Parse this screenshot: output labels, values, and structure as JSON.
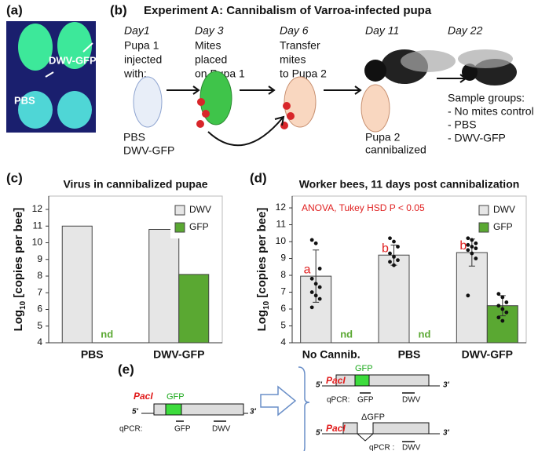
{
  "panel_a": {
    "label": "(a)",
    "labels": [
      "DWV-GFP",
      "PBS"
    ]
  },
  "panel_b": {
    "label": "(b)",
    "title": "Experiment A: Cannibalism of Varroa-infected pupa",
    "steps": [
      {
        "day": "Day1",
        "lines": [
          "Pupa 1",
          "injected",
          "with:"
        ]
      },
      {
        "day": "Day 3",
        "lines": [
          "Mites",
          "placed",
          "on Pupa 1"
        ]
      },
      {
        "day": "Day 6",
        "lines": [
          "Transfer",
          "mites",
          "to Pupa 2"
        ]
      },
      {
        "day": "Day 11",
        "lines": []
      },
      {
        "day": "Day 22",
        "lines": []
      }
    ],
    "injections": [
      "PBS",
      "DWV-GFP"
    ],
    "pupa2": [
      "Pupa 2",
      "cannibalized"
    ],
    "groups": [
      "Sample groups:",
      "- No mites control",
      "- PBS",
      "- DWV-GFP"
    ]
  },
  "chart_data": [
    {
      "type": "bar",
      "label": "(c)",
      "title": "Virus in cannibalized pupae",
      "ylabel": [
        "Log",
        "10",
        " [copies per bee]"
      ],
      "categories": [
        "PBS",
        "DWV-GFP"
      ],
      "series": [
        {
          "name": "DWV",
          "color": "#e6e6e6",
          "values": [
            11.0,
            10.8
          ]
        },
        {
          "name": "GFP",
          "color": "#5aa832",
          "values": [
            null,
            8.1
          ],
          "value_labels": [
            "nd",
            null
          ]
        }
      ],
      "ylim": [
        4,
        12.8
      ],
      "yticks": [
        4,
        5,
        6,
        7,
        8,
        9,
        10,
        11,
        12
      ],
      "legend": "top-right"
    },
    {
      "type": "bar",
      "label": "(d)",
      "title": "Worker bees, 11 days post cannibalization",
      "annotation": "ANOVA, Tukey HSD  P < 0.05",
      "ylabel": [
        "Log",
        "10",
        " [copies per bee]"
      ],
      "categories": [
        "No Cannib.",
        "PBS",
        "DWV-GFP"
      ],
      "series": [
        {
          "name": "DWV",
          "color": "#e6e6e6",
          "values": [
            7.95,
            9.2,
            9.35
          ],
          "errors": [
            1.55,
            0.6,
            0.8
          ],
          "letters": [
            "a",
            "b",
            "b"
          ],
          "points": [
            [
              10.1,
              9.9,
              8.4,
              7.8,
              7.5,
              7.3,
              7.0,
              6.8,
              6.6,
              6.1
            ],
            [
              10.2,
              10.0,
              9.7,
              9.3,
              9.1,
              8.9,
              8.8,
              8.6
            ],
            [
              10.2,
              10.1,
              9.9,
              9.8,
              9.7,
              9.6,
              9.5,
              9.3,
              9.0,
              6.8
            ]
          ]
        },
        {
          "name": "GFP",
          "color": "#5aa832",
          "values": [
            null,
            null,
            6.2
          ],
          "errors": [
            null,
            null,
            0.6
          ],
          "value_labels": [
            "nd",
            "nd",
            null
          ],
          "points": [
            [],
            [],
            [
              6.9,
              6.7,
              6.4,
              6.2,
              6.0,
              5.8,
              5.5,
              5.3
            ]
          ]
        }
      ],
      "ylim": [
        4,
        12.7
      ],
      "yticks": [
        4,
        5,
        6,
        7,
        8,
        9,
        10,
        11,
        12
      ],
      "legend": "top-right"
    }
  ],
  "panel_e": {
    "label": "(e)",
    "construct": {
      "enzyme": "PacI",
      "insert": "GFP",
      "five": "5'",
      "three": "3'",
      "qpcr": "qPCR:",
      "primers": [
        "GFP",
        "DWV"
      ]
    },
    "products": [
      {
        "enzyme": "PacI",
        "insert": "GFP",
        "five": "5'",
        "three": "3'",
        "qpcr": "qPCR:",
        "primers": [
          "GFP",
          "DWV"
        ]
      },
      {
        "enzyme": "PacI",
        "insert": "ΔGFP",
        "five": "5'",
        "three": "3'",
        "qpcr": "qPCR :",
        "primers": [
          "DWV"
        ]
      }
    ]
  }
}
